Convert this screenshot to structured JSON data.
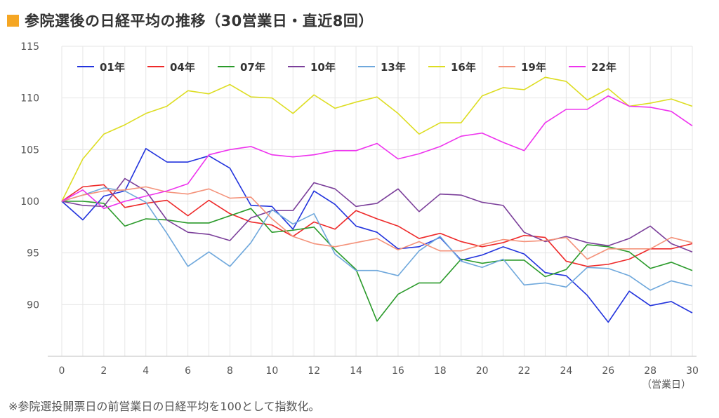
{
  "title": "参院選後の日経平均の推移（30営業日・直近8回）",
  "footnote": "※参院選投開票日の前営業日の日経平均を100として指数化。",
  "colors": {
    "title_mark": "#f5a623",
    "grid": "#e6e6e6",
    "axis": "#cccccc"
  },
  "chart_data": {
    "type": "line",
    "xlabel": "（営業日）",
    "ylabel": "",
    "xlim": [
      0,
      30
    ],
    "ylim": [
      85,
      115
    ],
    "xticks": [
      0,
      2,
      4,
      6,
      8,
      10,
      12,
      14,
      16,
      18,
      20,
      22,
      24,
      26,
      28,
      30
    ],
    "yticks": [
      90,
      95,
      100,
      105,
      110,
      115
    ],
    "grid": true,
    "legend_position": "top",
    "x": [
      0,
      1,
      2,
      3,
      4,
      5,
      6,
      7,
      8,
      9,
      10,
      11,
      12,
      13,
      14,
      15,
      16,
      17,
      18,
      19,
      20,
      21,
      22,
      23,
      24,
      25,
      26,
      27,
      28,
      29,
      30
    ],
    "series": [
      {
        "name": "01年",
        "color": "#2233dd",
        "values": [
          100,
          98.2,
          100.5,
          101,
          105.1,
          103.8,
          103.8,
          104.4,
          103.2,
          99.6,
          99.5,
          97.3,
          101,
          99.7,
          97.6,
          97,
          95.4,
          95.6,
          96.5,
          94.3,
          94.8,
          95.6,
          94.9,
          93.1,
          92.8,
          90.9,
          88.3,
          91.3,
          89.9,
          90.3,
          89.2
        ]
      },
      {
        "name": "04年",
        "color": "#ee2a2a",
        "values": [
          100,
          101.4,
          101.6,
          99.4,
          99.8,
          100.1,
          98.6,
          100.1,
          98.8,
          98,
          97.7,
          96.6,
          98,
          97.3,
          99.1,
          98.3,
          97.6,
          96.4,
          96.9,
          96.1,
          95.6,
          96,
          96.7,
          96.5,
          94.2,
          93.7,
          93.9,
          94.4,
          95.4,
          95.4,
          95.9
        ]
      },
      {
        "name": "07年",
        "color": "#2a9a2a",
        "values": [
          100,
          100,
          99.8,
          97.6,
          98.3,
          98.2,
          97.9,
          97.9,
          98.6,
          99.3,
          97,
          97.2,
          97.5,
          95.3,
          93.4,
          88.4,
          91,
          92.1,
          92.1,
          94.4,
          94,
          94.3,
          94.3,
          92.7,
          93.4,
          95.8,
          95.6,
          95.1,
          93.5,
          94.1,
          93.3
        ]
      },
      {
        "name": "10年",
        "color": "#7b3f9a",
        "values": [
          100,
          99.6,
          99.5,
          102.2,
          101,
          98.2,
          97,
          96.8,
          96.2,
          98.4,
          99.1,
          99.1,
          101.8,
          101.2,
          99.5,
          99.8,
          101.2,
          99,
          100.7,
          100.6,
          99.9,
          99.6,
          97,
          96.1,
          96.6,
          96,
          95.7,
          96.4,
          97.6,
          95.9,
          95.1
        ]
      },
      {
        "name": "13年",
        "color": "#6fa8dc",
        "values": [
          100,
          100.6,
          101.3,
          101,
          99.9,
          96.9,
          93.7,
          95.1,
          93.7,
          96,
          99.2,
          97.8,
          98.8,
          94.9,
          93.3,
          93.3,
          92.8,
          95.2,
          96.6,
          94.2,
          93.6,
          94.4,
          91.9,
          92.1,
          91.7,
          93.6,
          93.5,
          92.8,
          91.4,
          92.3,
          91.8
        ]
      },
      {
        "name": "16年",
        "color": "#dddd22",
        "values": [
          100,
          104.1,
          106.5,
          107.4,
          108.5,
          109.2,
          110.7,
          110.4,
          111.3,
          110.1,
          110,
          108.5,
          110.3,
          109,
          109.6,
          110.1,
          108.5,
          106.5,
          107.6,
          107.6,
          110.2,
          111,
          110.8,
          112,
          111.6,
          109.8,
          110.9,
          109.2,
          109.5,
          109.9,
          109.2
        ]
      },
      {
        "name": "19年",
        "color": "#f4927a",
        "values": [
          100,
          100.6,
          101,
          101.1,
          101.4,
          100.9,
          100.7,
          101.2,
          100.3,
          100.4,
          98.3,
          96.6,
          95.9,
          95.6,
          96,
          96.4,
          95.3,
          96.1,
          95.2,
          95.2,
          95.8,
          96.3,
          96.1,
          96.2,
          96.5,
          94.4,
          95.4,
          95.4,
          95.4,
          96.5,
          96
        ]
      },
      {
        "name": "22年",
        "color": "#ee33ee",
        "values": [
          100,
          101.1,
          99.3,
          100,
          100.5,
          101,
          101.7,
          104.5,
          105,
          105.3,
          104.5,
          104.3,
          104.5,
          104.9,
          104.9,
          105.6,
          104.1,
          104.6,
          105.3,
          106.3,
          106.6,
          105.7,
          104.9,
          107.6,
          108.9,
          108.9,
          110.2,
          109.2,
          109.1,
          108.7,
          107.3
        ]
      }
    ]
  }
}
